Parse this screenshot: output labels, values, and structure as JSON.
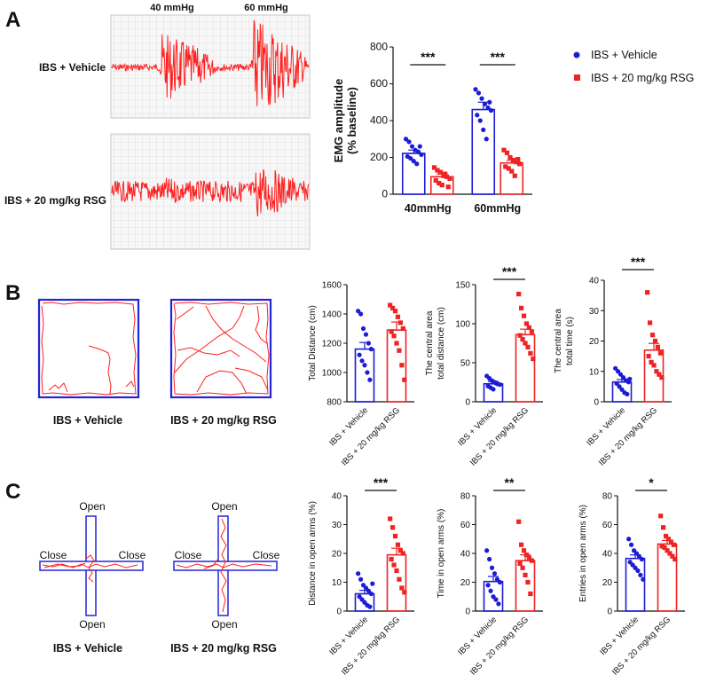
{
  "panels": {
    "a": "A",
    "b": "B",
    "c": "C"
  },
  "colors": {
    "vehicle": "#1c1cd6",
    "rsg": "#ee2424",
    "trace": "#ff2020",
    "grid": "#c9c9c9",
    "grid_bg": "#f6f6f6"
  },
  "legend": {
    "vehicle": "IBS + Vehicle",
    "rsg": "IBS + 20 mg/kg RSG"
  },
  "emg_traces": {
    "markers": [
      "40 mmHg",
      "60 mmHg"
    ],
    "rows": [
      "IBS + Vehicle",
      "IBS + 20 mg/kg RSG"
    ]
  },
  "open_field": {
    "labels": [
      "IBS + Vehicle",
      "IBS + 20 mg/kg RSG"
    ]
  },
  "maze": {
    "open_label": "Open",
    "close_label": "Close",
    "labels": [
      "IBS + Vehicle",
      "IBS + 20 mg/kg RSG"
    ]
  },
  "chart_data": [
    {
      "id": "emg",
      "type": "bar",
      "title": "",
      "ylabel": [
        "EMG amplitude",
        "(% baseline)"
      ],
      "categories": [
        "40mmHg",
        "60mmHg"
      ],
      "ylim": [
        0,
        800
      ],
      "yticks": [
        0,
        200,
        400,
        600,
        800
      ],
      "series": [
        {
          "name": "IBS + Vehicle",
          "values": [
            222,
            460
          ],
          "sem": [
            18,
            40
          ],
          "points": [
            [
              300,
              285,
              260,
              240,
              230,
              215,
              205,
              195,
              180,
              165,
              260
            ],
            [
              570,
              550,
              520,
              490,
              470,
              455,
              430,
              400,
              350,
              300,
              500
            ]
          ]
        },
        {
          "name": "IBS + 20 mg/kg RSG",
          "values": [
            95,
            170
          ],
          "sem": [
            14,
            14
          ],
          "points": [
            [
              145,
              130,
              120,
              100,
              95,
              85,
              75,
              60,
              50,
              110,
              40
            ],
            [
              240,
              225,
              200,
              185,
              175,
              165,
              150,
              140,
              125,
              100,
              190
            ]
          ]
        }
      ],
      "significance": [
        "***",
        "***"
      ]
    },
    {
      "id": "total_distance",
      "type": "bar",
      "ylabel": [
        "Total Distance (cm)"
      ],
      "categories": [
        "IBS + Vehicle",
        "IBS + 20 mg/kg RSG"
      ],
      "ylim": [
        800,
        1600
      ],
      "yticks": [
        800,
        1000,
        1200,
        1400,
        1600
      ],
      "values": [
        1160,
        1290
      ],
      "sem": [
        45,
        55
      ],
      "points": [
        [
          1420,
          1400,
          1300,
          1260,
          1200,
          1160,
          1120,
          1080,
          1050,
          1000,
          950
        ],
        [
          1460,
          1440,
          1420,
          1380,
          1340,
          1300,
          1280,
          1250,
          1200,
          1150,
          1050,
          950
        ]
      ],
      "significance": ""
    },
    {
      "id": "central_distance",
      "type": "bar",
      "ylabel": [
        "The central area",
        "total distance (cm)"
      ],
      "categories": [
        "IBS + Vehicle",
        "IBS + 20 mg/kg RSG"
      ],
      "ylim": [
        0,
        150
      ],
      "yticks": [
        0,
        50,
        100,
        150
      ],
      "values": [
        23,
        86
      ],
      "sem": [
        3,
        7
      ],
      "points": [
        [
          33,
          30,
          27,
          25,
          23,
          22,
          20,
          18,
          16,
          24
        ],
        [
          138,
          120,
          110,
          100,
          95,
          90,
          85,
          80,
          75,
          70,
          62,
          55
        ]
      ],
      "significance": "***"
    },
    {
      "id": "central_time",
      "type": "bar",
      "ylabel": [
        "The central area",
        "total time (s)"
      ],
      "categories": [
        "IBS + Vehicle",
        "IBS + 20 mg/kg RSG"
      ],
      "ylim": [
        0,
        40
      ],
      "yticks": [
        0,
        10,
        20,
        30,
        40
      ],
      "values": [
        6.5,
        17
      ],
      "sem": [
        0.8,
        2.2
      ],
      "points": [
        [
          11,
          10,
          9,
          8,
          7,
          6.5,
          6,
          5,
          4,
          3,
          2.5,
          7.5
        ],
        [
          36,
          26,
          22,
          20,
          18,
          16,
          15,
          13,
          12,
          10,
          9,
          8
        ]
      ],
      "significance": "***"
    },
    {
      "id": "open_distance",
      "type": "bar",
      "ylabel": [
        "Distance in open arms (%)"
      ],
      "categories": [
        "IBS + Vehicle",
        "IBS + 20 mg/kg RSG"
      ],
      "ylim": [
        0,
        40
      ],
      "yticks": [
        0,
        10,
        20,
        30,
        40
      ],
      "values": [
        6,
        19.5
      ],
      "sem": [
        1.2,
        2.3
      ],
      "points": [
        [
          13,
          11,
          9,
          8,
          7,
          6,
          5,
          4,
          3,
          2,
          1.5,
          9.5
        ],
        [
          32,
          29,
          26,
          23,
          21,
          20,
          18,
          16,
          14,
          11,
          8,
          6.5
        ]
      ],
      "significance": "***"
    },
    {
      "id": "open_time",
      "type": "bar",
      "ylabel": [
        "Time in open arms (%)"
      ],
      "categories": [
        "IBS + Vehicle",
        "IBS + 20 mg/kg RSG"
      ],
      "ylim": [
        0,
        80
      ],
      "yticks": [
        0,
        20,
        40,
        60,
        80
      ],
      "values": [
        20.5,
        35
      ],
      "sem": [
        3.5,
        4
      ],
      "points": [
        [
          42,
          36,
          30,
          26,
          22,
          20,
          18,
          14,
          10,
          8,
          5
        ],
        [
          62,
          46,
          42,
          39,
          37,
          35,
          33,
          30,
          25,
          20,
          12
        ]
      ],
      "significance": "**"
    },
    {
      "id": "open_entries",
      "type": "bar",
      "ylabel": [
        "Entries in open arms (%)"
      ],
      "categories": [
        "IBS + Vehicle",
        "IBS + 20 mg/kg RSG"
      ],
      "ylim": [
        0,
        80
      ],
      "yticks": [
        0,
        20,
        40,
        60,
        80
      ],
      "values": [
        36.5,
        46.5
      ],
      "sem": [
        2.5,
        2.5
      ],
      "points": [
        [
          50,
          46,
          42,
          40,
          38,
          36,
          34,
          32,
          30,
          28,
          25,
          22
        ],
        [
          66,
          58,
          52,
          50,
          48,
          46,
          45,
          44,
          42,
          40,
          38,
          36
        ]
      ],
      "significance": "*"
    }
  ]
}
